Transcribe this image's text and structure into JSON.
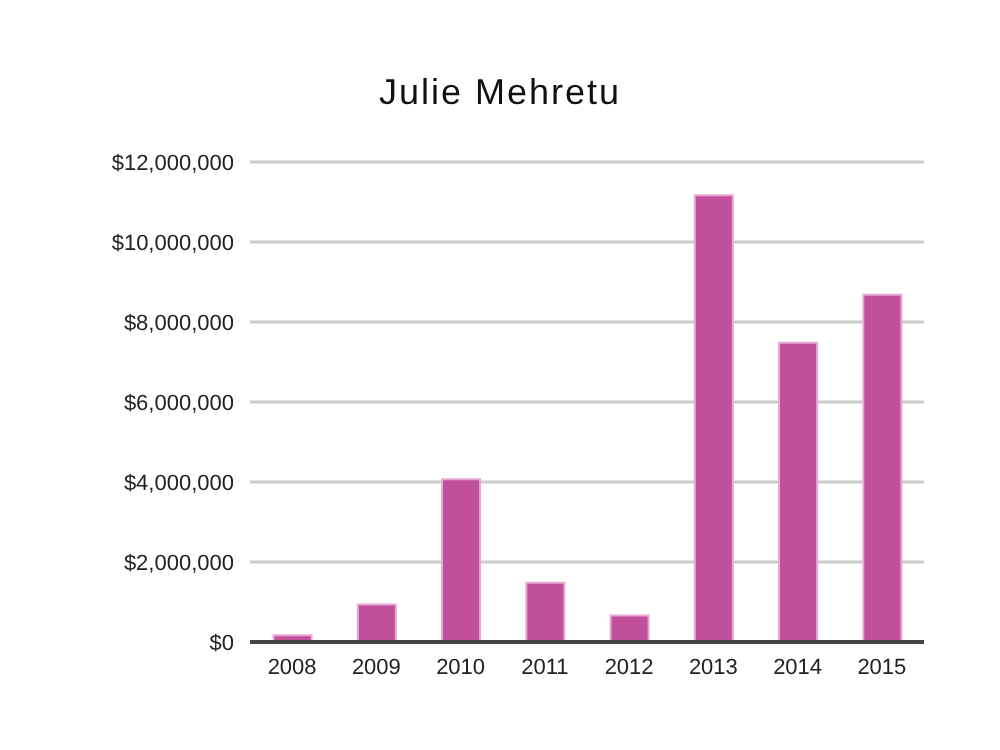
{
  "chart_data": {
    "type": "bar",
    "title": "Julie Mehretu",
    "categories": [
      "2008",
      "2009",
      "2010",
      "2011",
      "2012",
      "2013",
      "2014",
      "2015"
    ],
    "values": [
      170000,
      940000,
      4070000,
      1480000,
      660000,
      11170000,
      7480000,
      8680000
    ],
    "color": "#c0509c",
    "ylim": [
      0,
      12000000
    ],
    "yticks": [
      {
        "value": 0,
        "label": "$0"
      },
      {
        "value": 2000000,
        "label": "$2,000,000"
      },
      {
        "value": 4000000,
        "label": "$4,000,000"
      },
      {
        "value": 6000000,
        "label": "$6,000,000"
      },
      {
        "value": 8000000,
        "label": "$8,000,000"
      },
      {
        "value": 10000000,
        "label": "$10,000,000"
      },
      {
        "value": 12000000,
        "label": "$12,000,000"
      }
    ],
    "grid": "y"
  }
}
